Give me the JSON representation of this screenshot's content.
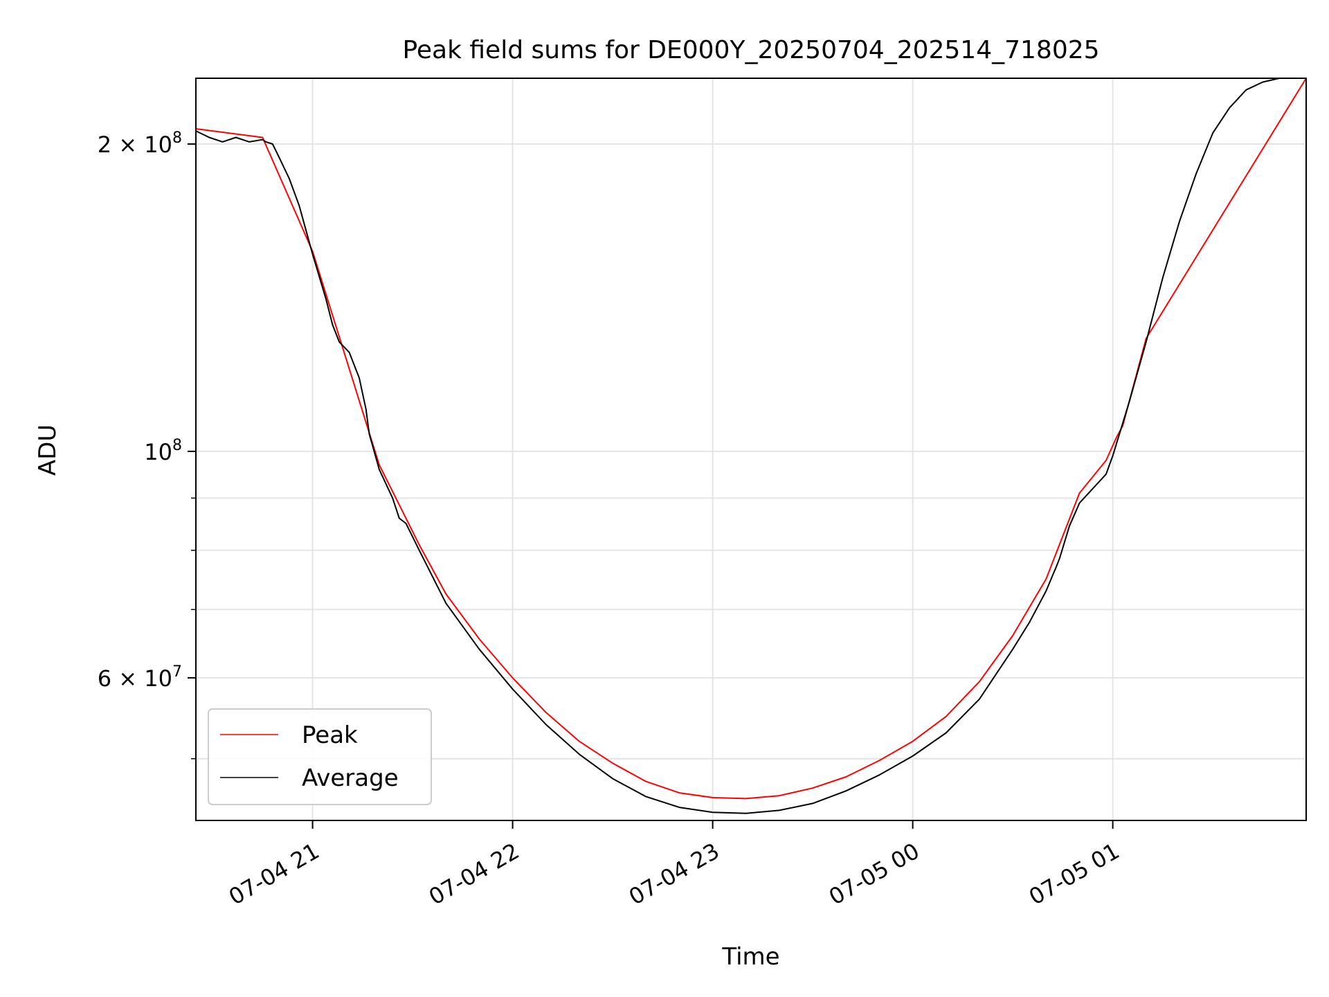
{
  "chart_data": {
    "type": "line",
    "title": "Peak field sums for DE000Y_20250704_202514_718025",
    "xlabel": "Time",
    "ylabel": "ADU",
    "yscale": "log",
    "xlim": [
      "2025-07-04 20:25",
      "2025-07-05 01:58"
    ],
    "ylim": [
      43500000,
      232000000
    ],
    "grid": true,
    "legend_position": "lower-left",
    "x_ticks": [
      {
        "t": "2025-07-04 21:00",
        "label": "07-04 21"
      },
      {
        "t": "2025-07-04 22:00",
        "label": "07-04 22"
      },
      {
        "t": "2025-07-04 23:00",
        "label": "07-04 23"
      },
      {
        "t": "2025-07-05 00:00",
        "label": "07-05 00"
      },
      {
        "t": "2025-07-05 01:00",
        "label": "07-05 01"
      }
    ],
    "y_major_ticks": [
      {
        "value": 60000000,
        "mantissa": "6",
        "base": "× 10",
        "exp": "7"
      },
      {
        "value": 100000000,
        "mantissa": "",
        "base": "10",
        "exp": "8"
      },
      {
        "value": 200000000,
        "mantissa": "2",
        "base": "× 10",
        "exp": "8"
      }
    ],
    "y_minor_ticks": [
      50000000,
      70000000,
      80000000,
      90000000
    ],
    "series": [
      {
        "name": "Average",
        "color": "#000000",
        "x": [
          "2025-07-04 20:25",
          "2025-07-04 20:29",
          "2025-07-04 20:33",
          "2025-07-04 20:37",
          "2025-07-04 20:41",
          "2025-07-04 20:45",
          "2025-07-04 20:46",
          "2025-07-04 20:48",
          "2025-07-04 20:50",
          "2025-07-04 20:53",
          "2025-07-04 20:56",
          "2025-07-04 21:00",
          "2025-07-04 21:04",
          "2025-07-04 21:06",
          "2025-07-04 21:08",
          "2025-07-04 21:11",
          "2025-07-04 21:14",
          "2025-07-04 21:16",
          "2025-07-04 21:17",
          "2025-07-04 21:20",
          "2025-07-04 21:24",
          "2025-07-04 21:26",
          "2025-07-04 21:28",
          "2025-07-04 21:32",
          "2025-07-04 21:40",
          "2025-07-04 21:50",
          "2025-07-04 22:00",
          "2025-07-04 22:10",
          "2025-07-04 22:20",
          "2025-07-04 22:30",
          "2025-07-04 22:40",
          "2025-07-04 22:50",
          "2025-07-04 23:00",
          "2025-07-04 23:10",
          "2025-07-04 23:20",
          "2025-07-04 23:30",
          "2025-07-04 23:40",
          "2025-07-04 23:50",
          "2025-07-05 00:00",
          "2025-07-05 00:10",
          "2025-07-05 00:20",
          "2025-07-05 00:30",
          "2025-07-05 00:35",
          "2025-07-05 00:40",
          "2025-07-05 00:43",
          "2025-07-05 00:44",
          "2025-07-05 00:47",
          "2025-07-05 00:50",
          "2025-07-05 00:58",
          "2025-07-05 00:59",
          "2025-07-05 01:00",
          "2025-07-05 01:05",
          "2025-07-05 01:10",
          "2025-07-05 01:15",
          "2025-07-05 01:20",
          "2025-07-05 01:25",
          "2025-07-05 01:30",
          "2025-07-05 01:35",
          "2025-07-05 01:40",
          "2025-07-05 01:45",
          "2025-07-05 01:50",
          "2025-07-05 01:55",
          "2025-07-05 01:58"
        ],
        "y": [
          206000000,
          203000000,
          201000000,
          203000000,
          201000000,
          202000000,
          201000000,
          200000000,
          194000000,
          185000000,
          174000000,
          156000000,
          141000000,
          133000000,
          128000000,
          125000000,
          118000000,
          110000000,
          104000000,
          96000000,
          90000000,
          86000000,
          85000000,
          80000000,
          71000000,
          64000000,
          58500000,
          54000000,
          50500000,
          47800000,
          45900000,
          44800000,
          44300000,
          44200000,
          44500000,
          45200000,
          46500000,
          48200000,
          50300000,
          53000000,
          57200000,
          64000000,
          68000000,
          73000000,
          77000000,
          78500000,
          84500000,
          89000000,
          95000000,
          97000000,
          99000000,
          112000000,
          128000000,
          148000000,
          168000000,
          187000000,
          205000000,
          217000000,
          226000000,
          230000000,
          232000000,
          232000000,
          232000000
        ]
      },
      {
        "name": "Peak",
        "color": "#ff0000",
        "x": [
          "2025-07-04 20:25",
          "2025-07-04 20:45",
          "2025-07-04 21:00",
          "2025-07-04 21:20",
          "2025-07-04 21:32",
          "2025-07-04 21:40",
          "2025-07-04 21:50",
          "2025-07-04 22:00",
          "2025-07-04 22:10",
          "2025-07-04 22:20",
          "2025-07-04 22:30",
          "2025-07-04 22:40",
          "2025-07-04 22:50",
          "2025-07-04 23:00",
          "2025-07-04 23:10",
          "2025-07-04 23:20",
          "2025-07-04 23:30",
          "2025-07-04 23:40",
          "2025-07-04 23:50",
          "2025-07-05 00:00",
          "2025-07-05 00:10",
          "2025-07-05 00:20",
          "2025-07-05 00:30",
          "2025-07-05 00:40",
          "2025-07-05 00:50",
          "2025-07-05 00:58",
          "2025-07-05 01:01",
          "2025-07-05 01:03",
          "2025-07-05 01:10",
          "2025-07-05 01:58"
        ],
        "y": [
          207000000,
          203000000,
          157000000,
          97000000,
          81000000,
          72500000,
          65500000,
          60000000,
          55500000,
          52000000,
          49500000,
          47500000,
          46300000,
          45800000,
          45700000,
          46000000,
          46800000,
          48000000,
          49800000,
          52000000,
          55000000,
          59500000,
          66000000,
          75000000,
          91000000,
          98000000,
          103000000,
          106000000,
          129000000,
          232000000
        ]
      }
    ]
  }
}
